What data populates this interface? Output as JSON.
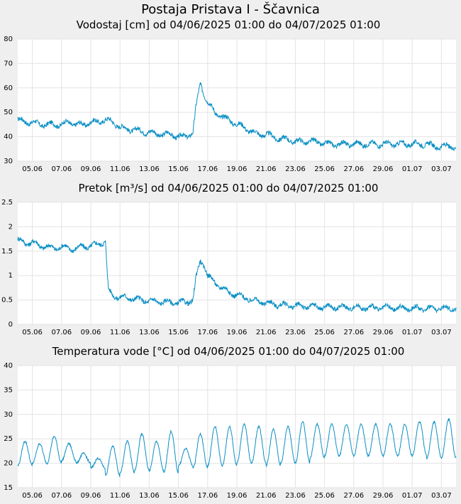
{
  "page_title": "Postaja Pristava I - Ščavnica",
  "colors": {
    "series": "#0a8fc4",
    "background": "#efefef",
    "plot": "#ffffff",
    "grid": "#e3e3e3"
  },
  "chart_data": [
    {
      "type": "line",
      "title": "Vodostaj [cm] od 04/06/2025 01:00 do 04/07/2025 01:00",
      "ylabel": "cm",
      "ylim": [
        30,
        80
      ],
      "yticks": [
        30,
        40,
        50,
        60,
        70,
        80
      ],
      "xlim": [
        0,
        30
      ],
      "xtick_positions": [
        1,
        3,
        5,
        7,
        9,
        11,
        13,
        15,
        17,
        19,
        21,
        23,
        25,
        27,
        29
      ],
      "xtick_labels": [
        "05.06",
        "07.06",
        "09.06",
        "11.06",
        "13.06",
        "15.06",
        "17.06",
        "19.06",
        "21.06",
        "23.06",
        "25.06",
        "27.06",
        "29.06",
        "01.07",
        "03.07"
      ],
      "series": [
        {
          "name": "Vodostaj",
          "x": [
            0,
            0.5,
            1,
            1.5,
            2,
            2.5,
            3,
            3.5,
            4,
            4.5,
            5,
            5.5,
            6,
            6.5,
            7,
            7.5,
            8,
            8.5,
            9,
            9.5,
            10,
            10.5,
            11,
            11.5,
            12,
            12.2,
            12.5,
            12.8,
            13,
            13.5,
            14,
            14.5,
            15,
            15.5,
            16,
            16.5,
            17,
            17.5,
            18,
            18.5,
            19,
            19.5,
            20,
            20.5,
            21,
            21.5,
            22,
            22.5,
            23,
            23.5,
            24,
            24.5,
            25,
            25.5,
            26,
            26.5,
            27,
            27.5,
            28,
            28.5,
            29,
            29.5,
            30
          ],
          "values": [
            47,
            46,
            46,
            45,
            45,
            45,
            45,
            46,
            45,
            45,
            46,
            46,
            47,
            46,
            44,
            43,
            43,
            42,
            42,
            41,
            41,
            41,
            40,
            40,
            42,
            52,
            62,
            57,
            54,
            50,
            48,
            47,
            45,
            44,
            42,
            41,
            41,
            40,
            39,
            39,
            38,
            38,
            38,
            38,
            37,
            37,
            37,
            37,
            37,
            37,
            37,
            37,
            37,
            37,
            37,
            37,
            37,
            37,
            37,
            36,
            36,
            36,
            36
          ]
        }
      ]
    },
    {
      "type": "line",
      "title": "Pretok [m³/s] od 04/06/2025 01:00 do 04/07/2025 01:00",
      "ylabel": "m³/s",
      "ylim": [
        0,
        2.5
      ],
      "yticks": [
        0,
        0.5,
        1,
        1.5,
        2,
        2.5
      ],
      "ytick_labels": [
        "0",
        "0.5",
        "1",
        "1.5",
        "2",
        "2.5"
      ],
      "xlim": [
        0,
        30
      ],
      "xtick_positions": [
        1,
        3,
        5,
        7,
        9,
        11,
        13,
        15,
        17,
        19,
        21,
        23,
        25,
        27,
        29
      ],
      "xtick_labels": [
        "05.06",
        "07.06",
        "09.06",
        "11.06",
        "13.06",
        "15.06",
        "17.06",
        "19.06",
        "21.06",
        "23.06",
        "25.06",
        "27.06",
        "29.06",
        "01.07",
        "03.07"
      ],
      "series": [
        {
          "name": "Pretok",
          "x": [
            0,
            0.5,
            1,
            1.5,
            2,
            2.5,
            3,
            3.5,
            4,
            4.5,
            5,
            5.5,
            6,
            6.2,
            6.5,
            7,
            7.5,
            8,
            8.5,
            9,
            9.5,
            10,
            10.5,
            11,
            11.5,
            12,
            12.2,
            12.5,
            12.8,
            13,
            13.5,
            14,
            14.5,
            15,
            15.5,
            16,
            16.5,
            17,
            17.5,
            18,
            18.5,
            19,
            19.5,
            20,
            20.5,
            21,
            21.5,
            22,
            22.5,
            23,
            23.5,
            24,
            24.5,
            25,
            25.5,
            26,
            26.5,
            27,
            27.5,
            28,
            28.5,
            29,
            29.5,
            30
          ],
          "values": [
            1.75,
            1.65,
            1.7,
            1.6,
            1.6,
            1.55,
            1.6,
            1.55,
            1.55,
            1.6,
            1.6,
            1.65,
            1.7,
            0.7,
            0.6,
            0.55,
            0.55,
            0.52,
            0.5,
            0.48,
            0.47,
            0.46,
            0.45,
            0.45,
            0.45,
            0.5,
            0.95,
            1.3,
            1.2,
            1.0,
            0.85,
            0.75,
            0.65,
            0.6,
            0.55,
            0.5,
            0.47,
            0.44,
            0.42,
            0.4,
            0.39,
            0.38,
            0.37,
            0.37,
            0.36,
            0.36,
            0.35,
            0.35,
            0.35,
            0.35,
            0.34,
            0.34,
            0.34,
            0.34,
            0.34,
            0.33,
            0.33,
            0.33,
            0.33,
            0.33,
            0.33,
            0.33,
            0.33,
            0.33
          ]
        }
      ]
    },
    {
      "type": "line",
      "title": "Temperatura vode [°C] od 04/06/2025 01:00 do 04/07/2025 01:00",
      "ylabel": "°C",
      "ylim": [
        15,
        40
      ],
      "yticks": [
        15,
        20,
        25,
        30,
        35,
        40
      ],
      "xlim": [
        0,
        30
      ],
      "xtick_positions": [
        1,
        3,
        5,
        7,
        9,
        11,
        13,
        15,
        17,
        19,
        21,
        23,
        25,
        27,
        29
      ],
      "xtick_labels": [
        "05.06",
        "07.06",
        "09.06",
        "11.06",
        "13.06",
        "15.06",
        "17.06",
        "19.06",
        "21.06",
        "23.06",
        "25.06",
        "27.06",
        "29.06",
        "01.07",
        "03.07"
      ],
      "series": [
        {
          "name": "Temperatura vode",
          "note": "daily cycle: min at day start, max mid-day",
          "daily_min": [
            19.5,
            20,
            20,
            20.5,
            20,
            19,
            17.5,
            18,
            18.5,
            18.5,
            18,
            19.5,
            19,
            19.5,
            19.5,
            20,
            20,
            19.5,
            20,
            20,
            21,
            21.5,
            21.5,
            21.5,
            21.5,
            21.5,
            21.5,
            21.5,
            21,
            21,
            21.5
          ],
          "daily_max": [
            24.5,
            24,
            25.5,
            24,
            22,
            21,
            23.5,
            24.5,
            26,
            24.5,
            26.5,
            23,
            26,
            27.5,
            27.5,
            28,
            27.5,
            27,
            27.5,
            28.5,
            28,
            28,
            28,
            28,
            28,
            28,
            28,
            28.5,
            28.5,
            29,
            29
          ]
        }
      ]
    }
  ]
}
